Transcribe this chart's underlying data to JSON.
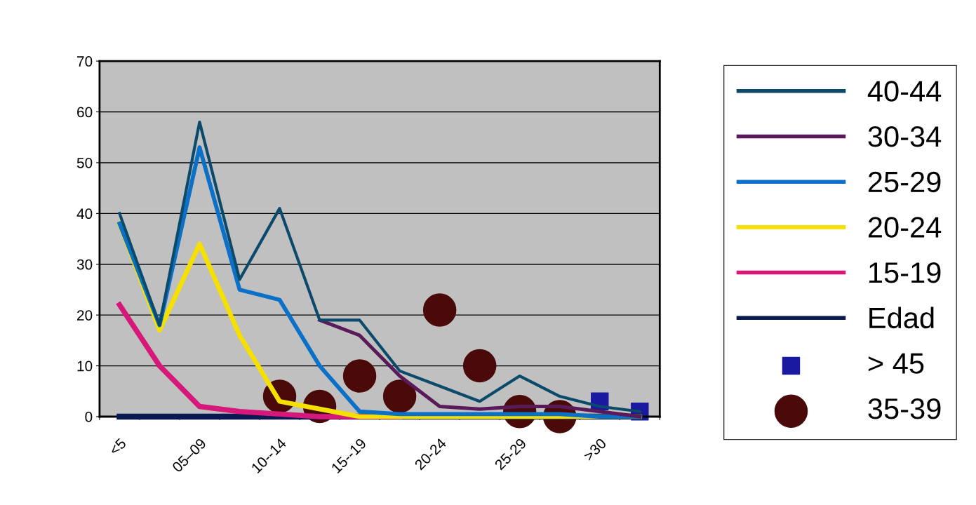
{
  "chart_data": {
    "type": "line",
    "categories": [
      "<5",
      null,
      "05–09",
      null,
      "10--14",
      null,
      "15--19",
      null,
      "20-24",
      null,
      "25-29",
      null,
      ">30",
      null
    ],
    "series": [
      {
        "name": "40-44",
        "color": "#0b4a6a",
        "values": [
          40,
          18,
          58,
          27,
          41,
          19,
          19,
          9,
          6,
          3,
          8,
          4,
          2,
          1
        ]
      },
      {
        "name": "30-34",
        "color": "#5a1a5a",
        "values": [
          null,
          null,
          null,
          null,
          null,
          19,
          16,
          8,
          2,
          1.5,
          2,
          2,
          1,
          0
        ]
      },
      {
        "name": "25-29",
        "color": "#0a70c8",
        "values": [
          38,
          18,
          53,
          25,
          23,
          10,
          1,
          0.5,
          0.5,
          0.5,
          0.5,
          0.5,
          0,
          0
        ]
      },
      {
        "name": "20-24",
        "color": "#f5e000",
        "values": [
          38,
          17,
          34,
          16,
          3,
          1.5,
          0,
          0,
          0,
          0,
          0,
          0,
          0,
          0
        ]
      },
      {
        "name": "15-19",
        "color": "#d6187a",
        "values": [
          22,
          10,
          2,
          1,
          0.5,
          0,
          0,
          0,
          null,
          null,
          null,
          null,
          null,
          null
        ]
      },
      {
        "name": "Edad",
        "color": "#0a1a50",
        "values": [
          0,
          0,
          0,
          0,
          0,
          0,
          0,
          0,
          0,
          0,
          0,
          0,
          0,
          0
        ]
      },
      {
        "name": "> 45",
        "type": "scatter",
        "marker": "square",
        "color": "#1a1aa0",
        "values": [
          null,
          null,
          null,
          null,
          null,
          null,
          null,
          null,
          null,
          null,
          null,
          null,
          3,
          1
        ]
      },
      {
        "name": "35-39",
        "type": "scatter",
        "marker": "circle",
        "color": "#4a0a0a",
        "values": [
          null,
          null,
          null,
          null,
          4,
          2,
          8,
          4,
          21,
          10,
          1,
          0,
          null,
          null
        ]
      }
    ],
    "ylim": [
      0,
      70
    ],
    "yticks": [
      0,
      10,
      20,
      30,
      40,
      50,
      60,
      70
    ],
    "grid": "y",
    "legend": "right"
  }
}
